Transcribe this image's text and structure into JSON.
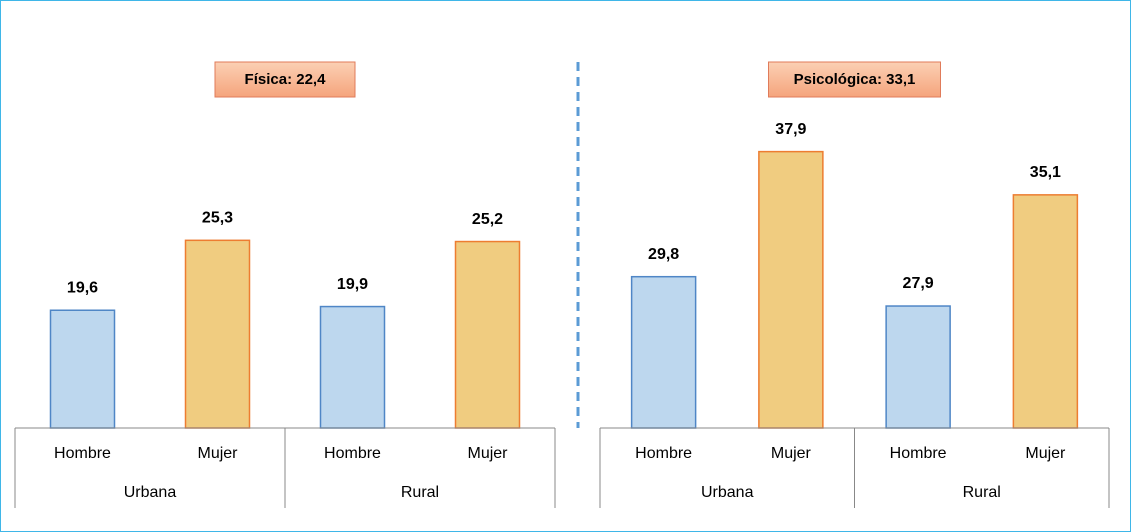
{
  "chart_data": [
    {
      "type": "bar",
      "title": "Física: 22,4",
      "categories": [
        "Hombre",
        "Mujer",
        "Hombre",
        "Mujer"
      ],
      "groups": [
        "Urbana",
        "Rural"
      ],
      "values": [
        19.6,
        25.3,
        19.9,
        25.2
      ],
      "value_labels": [
        "19,6",
        "25,3",
        "19,9",
        "25,2"
      ],
      "colors": [
        "#bdd7ee",
        "#f0cc80",
        "#bdd7ee",
        "#f0cc80"
      ],
      "ylim": [
        10,
        40
      ]
    },
    {
      "type": "bar",
      "title": "Psicológica: 33,1",
      "categories": [
        "Hombre",
        "Mujer",
        "Hombre",
        "Mujer"
      ],
      "groups": [
        "Urbana",
        "Rural"
      ],
      "values": [
        29.8,
        37.9,
        27.9,
        35.1
      ],
      "value_labels": [
        "29,8",
        "37,9",
        "27,9",
        "35,1"
      ],
      "colors": [
        "#bdd7ee",
        "#f0cc80",
        "#bdd7ee",
        "#f0cc80"
      ],
      "ylim": [
        20,
        45
      ]
    }
  ]
}
